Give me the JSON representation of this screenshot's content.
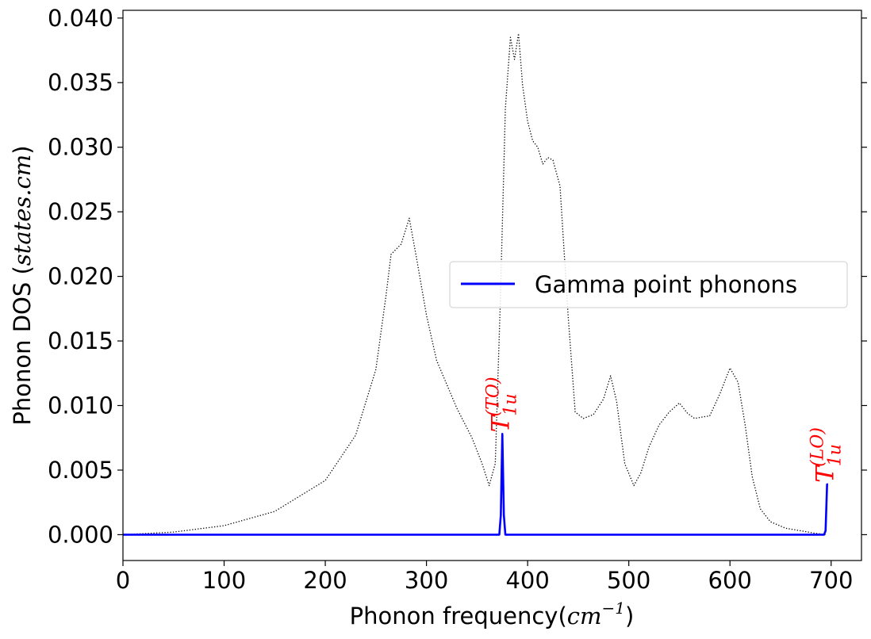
{
  "chart_data": {
    "type": "line",
    "xlabel": "Phonon frequency",
    "xlabel_unit_base": "cm",
    "xlabel_unit_exp": "−1",
    "ylabel": "Phonon DOS",
    "ylabel_unit": "states.cm",
    "xlim": [
      0,
      730
    ],
    "ylim": [
      -0.002,
      0.0406
    ],
    "x_ticks": [
      0,
      100,
      200,
      300,
      400,
      500,
      600,
      700
    ],
    "x_tick_labels": [
      "0",
      "100",
      "200",
      "300",
      "400",
      "500",
      "600",
      "700"
    ],
    "y_ticks": [
      0.0,
      0.005,
      0.01,
      0.015,
      0.02,
      0.025,
      0.03,
      0.035,
      0.04
    ],
    "y_tick_labels": [
      "0.000",
      "0.005",
      "0.010",
      "0.015",
      "0.020",
      "0.025",
      "0.030",
      "0.035",
      "0.040"
    ],
    "grid": false,
    "legend_position": "right",
    "series": [
      {
        "name": "Gamma point phonons",
        "color": "#0000ff",
        "style": "solid",
        "x": [
          0,
          372,
          373.5,
          375,
          376.5,
          378,
          693,
          694.5,
          696,
          697
        ],
        "y": [
          0,
          0,
          0.0015,
          0.0078,
          0.0015,
          0,
          0,
          0.0003,
          0.0039,
          0.0039
        ]
      },
      {
        "color": "#000000",
        "style": "dotted",
        "x": [
          0,
          50,
          100,
          150,
          200,
          230,
          250,
          260,
          265,
          275,
          283,
          290,
          300,
          310,
          330,
          345,
          355,
          362,
          368,
          373,
          378,
          383,
          387,
          391,
          395,
          400,
          405,
          410,
          415,
          420,
          425,
          432,
          440,
          447,
          455,
          465,
          475,
          482,
          488,
          496,
          505,
          512,
          520,
          530,
          540,
          550,
          558,
          565,
          572,
          580,
          590,
          600,
          608,
          615,
          622,
          630,
          640,
          655,
          670,
          685,
          695
        ],
        "y": [
          0,
          0.0002,
          0.0007,
          0.0018,
          0.0042,
          0.0077,
          0.0128,
          0.0185,
          0.0217,
          0.0225,
          0.0245,
          0.0215,
          0.017,
          0.0135,
          0.0098,
          0.0075,
          0.0055,
          0.0038,
          0.0055,
          0.018,
          0.033,
          0.0385,
          0.0368,
          0.0388,
          0.0348,
          0.032,
          0.0305,
          0.03,
          0.0287,
          0.0292,
          0.029,
          0.027,
          0.017,
          0.0095,
          0.009,
          0.0093,
          0.0105,
          0.0123,
          0.0103,
          0.0055,
          0.0038,
          0.0048,
          0.0068,
          0.0085,
          0.0095,
          0.0102,
          0.0094,
          0.009,
          0.0091,
          0.0092,
          0.0109,
          0.0129,
          0.0118,
          0.0085,
          0.0045,
          0.002,
          0.001,
          0.0005,
          0.0003,
          0.0001,
          0
        ]
      }
    ],
    "annotations": [
      {
        "base": "T",
        "sub": "1u",
        "sup": "(TO)",
        "x": 375,
        "y": 0.0078
      },
      {
        "base": "T",
        "sub": "1u",
        "sup": "(LO)",
        "x": 696,
        "y": 0.0039
      }
    ]
  }
}
